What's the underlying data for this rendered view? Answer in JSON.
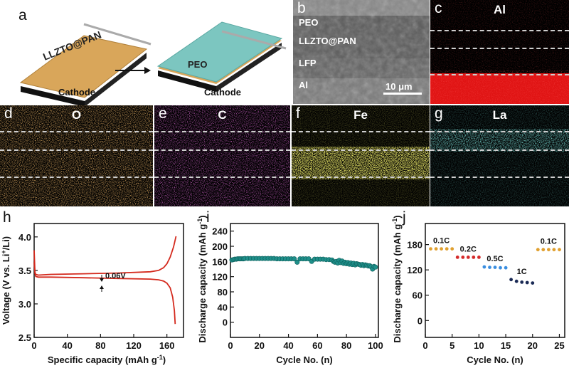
{
  "panels": {
    "a": {
      "letter": "a",
      "label_llzto": "LLZTO@PAN",
      "label_peo": "PEO",
      "cathode_left": "Cathode",
      "cathode_right": "Cathode"
    },
    "b": {
      "letter": "b",
      "layers": [
        "PEO",
        "LLZTO@PAN",
        "LFP",
        "Al"
      ],
      "scalebar": "10 μm"
    },
    "c": {
      "letter": "c",
      "element": "Al",
      "color": "#ff1a1a"
    },
    "d": {
      "letter": "d",
      "element": "O",
      "color": "#d9742a"
    },
    "e": {
      "letter": "e",
      "element": "C",
      "color": "#b02aa8"
    },
    "f": {
      "letter": "f",
      "element": "Fe",
      "color": "#d8d420"
    },
    "g": {
      "letter": "g",
      "element": "La",
      "color": "#2aa8a0"
    },
    "h": {
      "letter": "h"
    },
    "i": {
      "letter": "i"
    },
    "j": {
      "letter": "j"
    }
  },
  "chart_data": [
    {
      "panel": "h",
      "type": "line",
      "xlabel_main": "Specific capacity (mAh g",
      "xlabel_sup": "-1",
      "xlabel_end": ")",
      "ylabel": "Voltage (V vs. Li",
      "ylabel_sup": "+",
      "ylabel_end": "/Li)",
      "xlim": [
        0,
        180
      ],
      "ylim": [
        2.5,
        4.2
      ],
      "xticks": [
        0,
        40,
        80,
        120,
        160
      ],
      "yticks": [
        2.5,
        3.0,
        3.5,
        4.0
      ],
      "annotation": "0.06V",
      "color": "#d42a1e",
      "series": [
        {
          "values_x": [
            0,
            1,
            2,
            5,
            20,
            60,
            100,
            140,
            150,
            156,
            160,
            164,
            168,
            171
          ],
          "values_y": [
            3.62,
            3.47,
            3.44,
            3.43,
            3.44,
            3.45,
            3.46,
            3.48,
            3.5,
            3.54,
            3.6,
            3.7,
            3.85,
            4.01
          ]
        },
        {
          "values_x": [
            0,
            1,
            2,
            5,
            20,
            60,
            100,
            140,
            150,
            156,
            160,
            164,
            167,
            169,
            170
          ],
          "values_y": [
            3.8,
            3.45,
            3.41,
            3.4,
            3.4,
            3.39,
            3.38,
            3.37,
            3.36,
            3.34,
            3.31,
            3.24,
            3.1,
            2.9,
            2.7
          ]
        }
      ]
    },
    {
      "panel": "i",
      "type": "scatter",
      "ylabel": "Discharge capacity (mAh g",
      "ylabel_sup": "-1",
      "ylabel_end": ")",
      "xlabel": "Cycle No. (n)",
      "xlim": [
        0,
        102
      ],
      "ylim": [
        -40,
        260
      ],
      "xticks": [
        0,
        20,
        40,
        60,
        80,
        100
      ],
      "yticks": [
        0,
        40,
        80,
        120,
        160,
        200,
        240
      ],
      "color": "#1f8f8a",
      "points": [
        [
          1,
          164
        ],
        [
          2,
          165
        ],
        [
          3,
          166
        ],
        [
          4,
          166
        ],
        [
          5,
          167
        ],
        [
          6,
          167
        ],
        [
          7,
          167
        ],
        [
          8,
          167
        ],
        [
          9,
          167
        ],
        [
          10,
          168
        ],
        [
          12,
          168
        ],
        [
          14,
          168
        ],
        [
          16,
          168
        ],
        [
          18,
          168
        ],
        [
          20,
          168
        ],
        [
          22,
          168
        ],
        [
          24,
          168
        ],
        [
          26,
          168
        ],
        [
          28,
          168
        ],
        [
          30,
          168
        ],
        [
          32,
          167
        ],
        [
          34,
          167
        ],
        [
          36,
          167
        ],
        [
          38,
          167
        ],
        [
          40,
          167
        ],
        [
          42,
          167
        ],
        [
          44,
          167
        ],
        [
          46,
          158
        ],
        [
          48,
          167
        ],
        [
          50,
          167
        ],
        [
          52,
          167
        ],
        [
          54,
          167
        ],
        [
          56,
          160
        ],
        [
          58,
          166
        ],
        [
          60,
          166
        ],
        [
          62,
          166
        ],
        [
          64,
          166
        ],
        [
          66,
          165
        ],
        [
          68,
          165
        ],
        [
          70,
          164
        ],
        [
          71,
          160
        ],
        [
          72,
          158
        ],
        [
          73,
          160
        ],
        [
          74,
          156
        ],
        [
          75,
          163
        ],
        [
          76,
          157
        ],
        [
          77,
          161
        ],
        [
          78,
          155
        ],
        [
          79,
          158
        ],
        [
          80,
          154
        ],
        [
          81,
          157
        ],
        [
          82,
          153
        ],
        [
          83,
          156
        ],
        [
          84,
          152
        ],
        [
          85,
          155
        ],
        [
          86,
          151
        ],
        [
          87,
          154
        ],
        [
          88,
          153
        ],
        [
          89,
          152
        ],
        [
          90,
          150
        ],
        [
          91,
          152
        ],
        [
          92,
          149
        ],
        [
          93,
          151
        ],
        [
          94,
          150
        ],
        [
          95,
          148
        ],
        [
          96,
          149
        ],
        [
          97,
          146
        ],
        [
          98,
          140
        ],
        [
          99,
          147
        ],
        [
          100,
          145
        ]
      ]
    },
    {
      "panel": "j",
      "type": "scatter",
      "ylabel": "Discharge capacity (mAh g",
      "ylabel_sup": "-1",
      "ylabel_end": ")",
      "xlabel": "Cycle No. (n)",
      "xlim": [
        0,
        26
      ],
      "ylim": [
        -40,
        230
      ],
      "xticks": [
        0,
        5,
        10,
        15,
        20,
        25
      ],
      "yticks": [
        0,
        60,
        120,
        180
      ],
      "series": [
        {
          "name": "0.1C",
          "color": "#e0a030",
          "x": [
            1,
            2,
            3,
            4,
            5
          ],
          "values": [
            170,
            170,
            170,
            170,
            170
          ]
        },
        {
          "name": "0.2C",
          "color": "#d42a2a",
          "x": [
            6,
            7,
            8,
            9,
            10
          ],
          "values": [
            150,
            150,
            150,
            150,
            150
          ]
        },
        {
          "name": "0.5C",
          "color": "#3a8ee0",
          "x": [
            11,
            12,
            13,
            14,
            15
          ],
          "values": [
            127,
            126,
            126,
            125,
            125
          ]
        },
        {
          "name": "1C",
          "color": "#1a2a55",
          "x": [
            16,
            17,
            18,
            19,
            20
          ],
          "values": [
            97,
            93,
            91,
            90,
            89
          ]
        },
        {
          "name": "0.1C",
          "color": "#e0a030",
          "x": [
            21,
            22,
            23,
            24,
            25
          ],
          "values": [
            168,
            168,
            168,
            168,
            168
          ]
        }
      ]
    }
  ]
}
